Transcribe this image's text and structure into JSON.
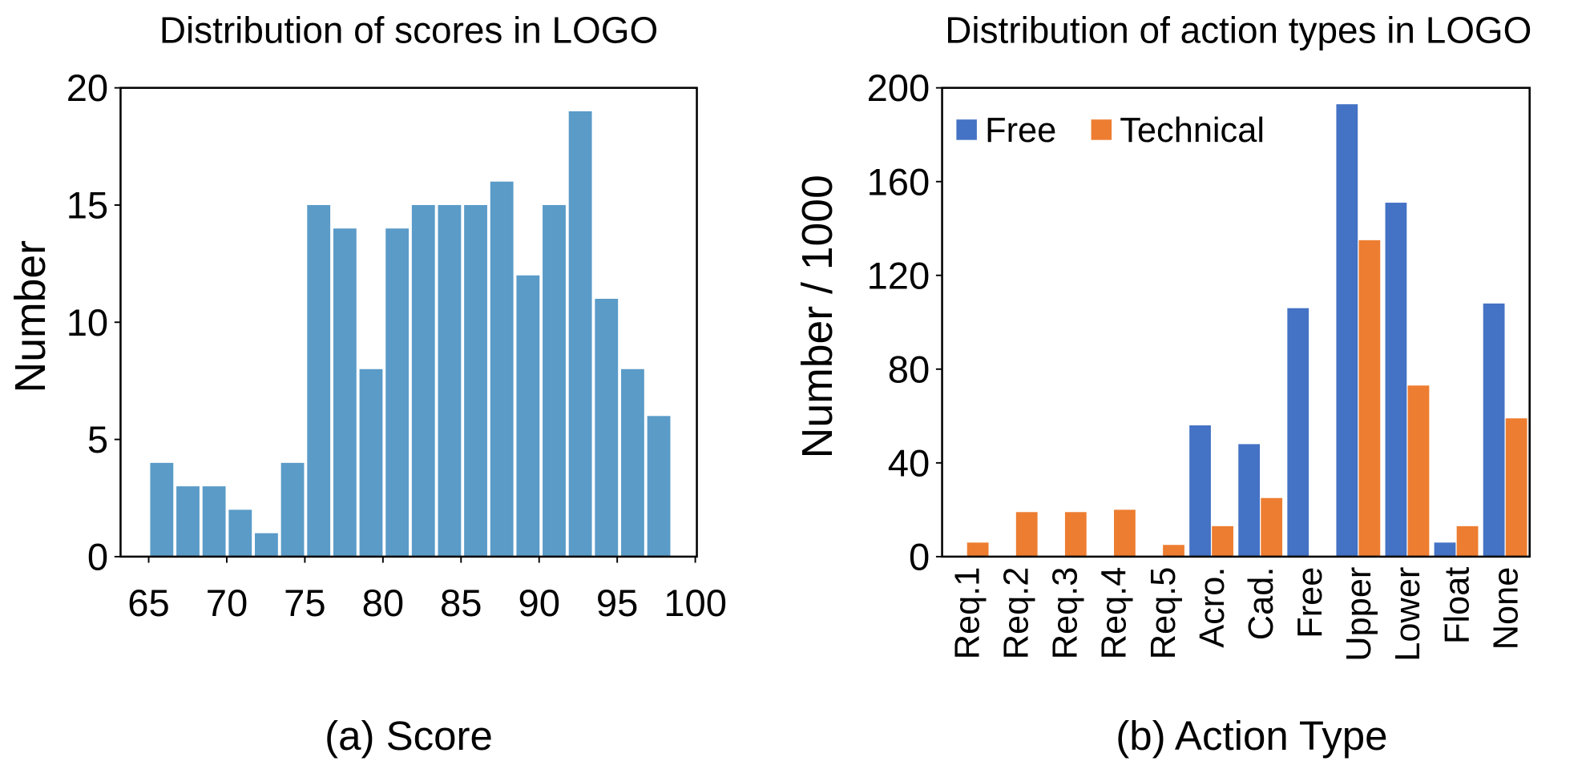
{
  "chart_data": [
    {
      "type": "histogram",
      "title": "Distribution of scores in LOGO",
      "xlabel": "(a) Score",
      "ylabel": "Number",
      "bins": [
        65,
        66.675,
        68.35,
        70.025,
        71.7,
        73.375,
        75.05,
        76.725,
        78.4,
        80.075,
        81.75,
        83.425,
        85.1,
        86.775,
        88.45,
        90.125,
        91.8,
        93.475,
        95.15,
        96.825,
        98.5
      ],
      "values": [
        4,
        3,
        3,
        2,
        1,
        4,
        15,
        14,
        8,
        14,
        15,
        15,
        15,
        16,
        12,
        15,
        19,
        11,
        8,
        6
      ],
      "color": "#5a9bc8",
      "xlim": [
        63.2,
        100.1
      ],
      "xticks": [
        65,
        70,
        75,
        80,
        85,
        90,
        95,
        100
      ],
      "ylim": [
        0,
        20
      ],
      "yticks": [
        0,
        5,
        10,
        15,
        20
      ]
    },
    {
      "type": "bar",
      "title": "Distribution of action types in LOGO",
      "xlabel": "(b) Action Type",
      "ylabel": "Number / 1000",
      "categories": [
        "Req.1",
        "Req.2",
        "Req.3",
        "Req.4",
        "Req.5",
        "Acro.",
        "Cad.",
        "Free",
        "Upper",
        "Lower",
        "Float",
        "None"
      ],
      "series": [
        {
          "name": "Free",
          "color": "#4472c4",
          "values": [
            0,
            0,
            0,
            0,
            0,
            56,
            48,
            106,
            193,
            151,
            6,
            108
          ]
        },
        {
          "name": "Technical",
          "color": "#ed7d31",
          "values": [
            6,
            19,
            19,
            20,
            5,
            13,
            25,
            0,
            135,
            73,
            13,
            59
          ]
        }
      ],
      "ylim": [
        0,
        200
      ],
      "yticks": [
        0,
        40,
        80,
        120,
        160,
        200
      ],
      "legend": "upper left"
    }
  ]
}
